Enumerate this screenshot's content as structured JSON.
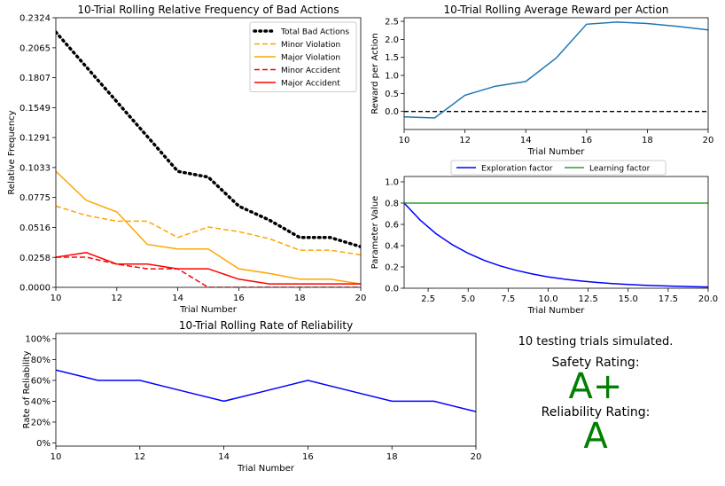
{
  "colors": {
    "black": "#000000",
    "orange": "#ffa500",
    "red": "#ff0000",
    "steelblue": "#1f77b4",
    "blue": "#0000ff",
    "green": "#2ca02c",
    "grade": "#008000"
  },
  "chart_data": [
    {
      "id": "bad_actions",
      "type": "line",
      "title": "10-Trial Rolling Relative Frequency of Bad Actions",
      "xlabel": "Trial Number",
      "ylabel": "Relative Frequency",
      "xlim": [
        10,
        20
      ],
      "ylim": [
        0,
        0.2324
      ],
      "xticks": [
        10,
        12,
        14,
        16,
        18,
        20
      ],
      "yticks": [
        "0.0000",
        "0.0258",
        "0.0516",
        "0.0775",
        "0.1033",
        "0.1291",
        "0.1549",
        "0.1807",
        "0.2065",
        "0.2324"
      ],
      "legend": "top-right",
      "x": [
        10,
        11,
        12,
        13,
        14,
        15,
        16,
        17,
        18,
        19,
        20
      ],
      "series": [
        {
          "name": "Total Bad Actions",
          "color": "black",
          "style": "dotted",
          "values": [
            0.22,
            0.19,
            0.16,
            0.13,
            0.1,
            0.095,
            0.07,
            0.058,
            0.043,
            0.043,
            0.035
          ]
        },
        {
          "name": "Minor Violation",
          "color": "orange",
          "style": "dashed",
          "values": [
            0.07,
            0.062,
            0.057,
            0.057,
            0.043,
            0.052,
            0.048,
            0.042,
            0.032,
            0.032,
            0.028
          ]
        },
        {
          "name": "Major Violation",
          "color": "orange",
          "style": "solid",
          "values": [
            0.1,
            0.075,
            0.065,
            0.037,
            0.033,
            0.033,
            0.016,
            0.012,
            0.007,
            0.007,
            0.003
          ]
        },
        {
          "name": "Minor Accident",
          "color": "red",
          "style": "dashed",
          "values": [
            0.026,
            0.026,
            0.02,
            0.016,
            0.016,
            0.0,
            0.0,
            0.0,
            0.0,
            0.0,
            0.0
          ]
        },
        {
          "name": "Major Accident",
          "color": "red",
          "style": "solid",
          "values": [
            0.026,
            0.03,
            0.02,
            0.02,
            0.016,
            0.016,
            0.007,
            0.003,
            0.003,
            0.003,
            0.003
          ]
        }
      ]
    },
    {
      "id": "avg_reward",
      "type": "line",
      "title": "10-Trial Rolling Average Reward per Action",
      "xlabel": "Trial Number",
      "ylabel": "Reward per Action",
      "xlim": [
        10,
        20
      ],
      "ylim": [
        -0.5,
        2.6
      ],
      "xticks": [
        10,
        12,
        14,
        16,
        18,
        20
      ],
      "yticks": [
        "0.0",
        "0.5",
        "1.0",
        "1.5",
        "2.0",
        "2.5"
      ],
      "reference_line": 0,
      "x": [
        10,
        11,
        12,
        13,
        14,
        15,
        16,
        17,
        18,
        19,
        20
      ],
      "series": [
        {
          "color": "steelblue",
          "style": "solid",
          "values": [
            -0.15,
            -0.18,
            0.45,
            0.7,
            0.83,
            1.48,
            2.42,
            2.48,
            2.44,
            2.36,
            2.26
          ]
        }
      ]
    },
    {
      "id": "parameters",
      "type": "line",
      "xlabel": "Trial Number",
      "ylabel": "Parameter Value",
      "xlim": [
        1,
        20
      ],
      "ylim": [
        0,
        1.05
      ],
      "xticks": [
        "2.5",
        "5.0",
        "7.5",
        "10.0",
        "12.5",
        "15.0",
        "17.5",
        "20.0"
      ],
      "yticks": [
        "0.0",
        "0.2",
        "0.4",
        "0.6",
        "0.8",
        "1.0"
      ],
      "legend": "above",
      "x": [
        1,
        2,
        3,
        4,
        5,
        6,
        7,
        8,
        9,
        10,
        11,
        12,
        13,
        14,
        15,
        16,
        17,
        18,
        19,
        20
      ],
      "series": [
        {
          "name": "Exploration factor",
          "color": "blue",
          "style": "solid",
          "values": [
            0.8,
            0.64,
            0.512,
            0.41,
            0.328,
            0.262,
            0.21,
            0.168,
            0.134,
            0.107,
            0.086,
            0.069,
            0.055,
            0.044,
            0.035,
            0.028,
            0.023,
            0.018,
            0.014,
            0.012
          ]
        },
        {
          "name": "Learning factor",
          "color": "green",
          "style": "solid",
          "values": [
            0.8,
            0.8,
            0.8,
            0.8,
            0.8,
            0.8,
            0.8,
            0.8,
            0.8,
            0.8,
            0.8,
            0.8,
            0.8,
            0.8,
            0.8,
            0.8,
            0.8,
            0.8,
            0.8,
            0.8
          ]
        }
      ]
    },
    {
      "id": "reliability",
      "type": "line",
      "title": "10-Trial Rolling Rate of Reliability",
      "xlabel": "Trial Number",
      "ylabel": "Rate of Reliability",
      "xlim": [
        10,
        20
      ],
      "ylim": [
        -3,
        105
      ],
      "xticks": [
        10,
        12,
        14,
        16,
        18,
        20
      ],
      "yticks": [
        "0%",
        "20%",
        "40%",
        "60%",
        "80%",
        "100%"
      ],
      "x": [
        10,
        11,
        12,
        13,
        14,
        15,
        16,
        17,
        18,
        19,
        20
      ],
      "series": [
        {
          "color": "blue",
          "style": "solid",
          "values": [
            70,
            60,
            60,
            50,
            40,
            50,
            60,
            50,
            40,
            40,
            30
          ]
        }
      ]
    }
  ],
  "summary": {
    "trials_text": "10 testing trials simulated.",
    "safety_label": "Safety Rating:",
    "safety_grade": "A+",
    "reliability_label": "Reliability Rating:",
    "reliability_grade": "A"
  }
}
